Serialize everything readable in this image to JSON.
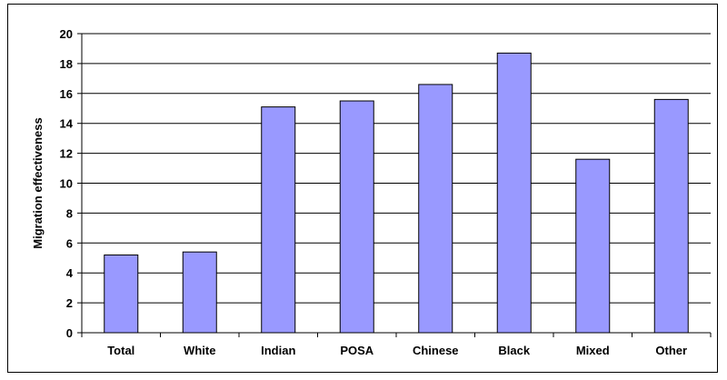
{
  "chart_data": {
    "type": "bar",
    "title": "",
    "xlabel": "",
    "ylabel": "Migration effectiveness",
    "categories": [
      "Total",
      "White",
      "Indian",
      "POSA",
      "Chinese",
      "Black",
      "Mixed",
      "Other"
    ],
    "values": [
      5.2,
      5.4,
      15.1,
      15.5,
      16.6,
      18.7,
      11.6,
      15.6
    ],
    "ylim": [
      0,
      20
    ],
    "yticks": [
      "0",
      "2",
      "4",
      "6",
      "8",
      "10",
      "12",
      "14",
      "16",
      "18",
      "20"
    ],
    "grid": true,
    "legend": "none",
    "bar_color": "#9999ff",
    "bar_stroke": "#000000"
  }
}
